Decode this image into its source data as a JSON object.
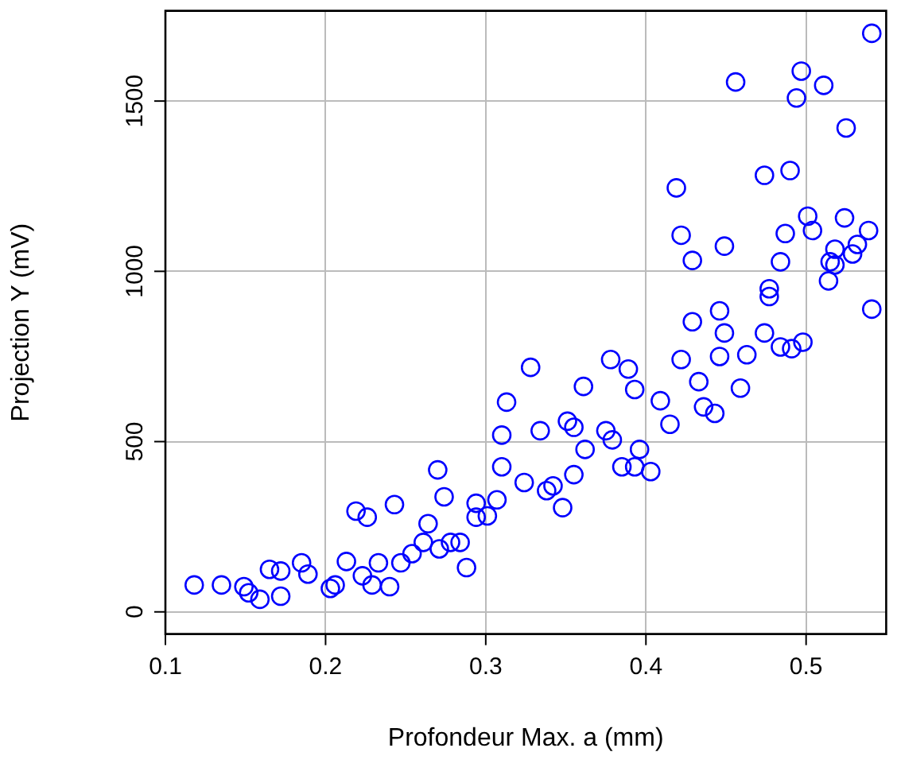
{
  "chart_data": {
    "type": "scatter",
    "xlabel": "Profondeur Max. a (mm)",
    "ylabel": "Projection Y (mV)",
    "xlim": [
      0.1,
      0.55
    ],
    "ylim": [
      -65,
      1765
    ],
    "xticks": [
      0.1,
      0.2,
      0.3,
      0.4,
      0.5
    ],
    "yticks": [
      0,
      500,
      1000,
      1500
    ],
    "grid": true,
    "marker": "circle",
    "legend": false,
    "series": [
      {
        "color": "#0000ff",
        "x": [
          0.118,
          0.135,
          0.149,
          0.152,
          0.159,
          0.172,
          0.165,
          0.172,
          0.185,
          0.189,
          0.203,
          0.206,
          0.213,
          0.223,
          0.229,
          0.24,
          0.233,
          0.219,
          0.226,
          0.243,
          0.247,
          0.254,
          0.261,
          0.264,
          0.27,
          0.274,
          0.271,
          0.278,
          0.284,
          0.288,
          0.294,
          0.294,
          0.301,
          0.307,
          0.31,
          0.31,
          0.313,
          0.328,
          0.378,
          0.389,
          0.393,
          0.361,
          0.409,
          0.415,
          0.334,
          0.351,
          0.355,
          0.375,
          0.379,
          0.362,
          0.396,
          0.385,
          0.393,
          0.403,
          0.355,
          0.324,
          0.338,
          0.342,
          0.348,
          0.541,
          0.497,
          0.456,
          0.511,
          0.494,
          0.525,
          0.474,
          0.49,
          0.419,
          0.501,
          0.524,
          0.422,
          0.504,
          0.539,
          0.487,
          0.449,
          0.532,
          0.518,
          0.429,
          0.529,
          0.484,
          0.515,
          0.518,
          0.514,
          0.477,
          0.477,
          0.541,
          0.446,
          0.429,
          0.449,
          0.474,
          0.446,
          0.484,
          0.491,
          0.498,
          0.463,
          0.422,
          0.459,
          0.433,
          0.436,
          0.443
        ],
        "values": [
          79,
          79,
          74,
          56,
          37,
          46,
          125,
          120,
          144,
          111,
          69,
          79,
          148,
          106,
          79,
          74,
          144,
          296,
          278,
          315,
          144,
          171,
          204,
          259,
          417,
          338,
          185,
          204,
          204,
          130,
          319,
          278,
          282,
          329,
          519,
          426,
          616,
          718,
          741,
          713,
          653,
          662,
          620,
          551,
          532,
          560,
          542,
          532,
          505,
          477,
          477,
          426,
          426,
          412,
          403,
          380,
          356,
          370,
          306,
          1699,
          1588,
          1556,
          1546,
          1509,
          1421,
          1282,
          1296,
          1245,
          1162,
          1157,
          1106,
          1120,
          1120,
          1111,
          1074,
          1079,
          1065,
          1032,
          1051,
          1028,
          1028,
          1019,
          972,
          949,
          926,
          889,
          884,
          852,
          819,
          819,
          750,
          778,
          773,
          792,
          755,
          741,
          657,
          676,
          602,
          583
        ]
      }
    ]
  }
}
